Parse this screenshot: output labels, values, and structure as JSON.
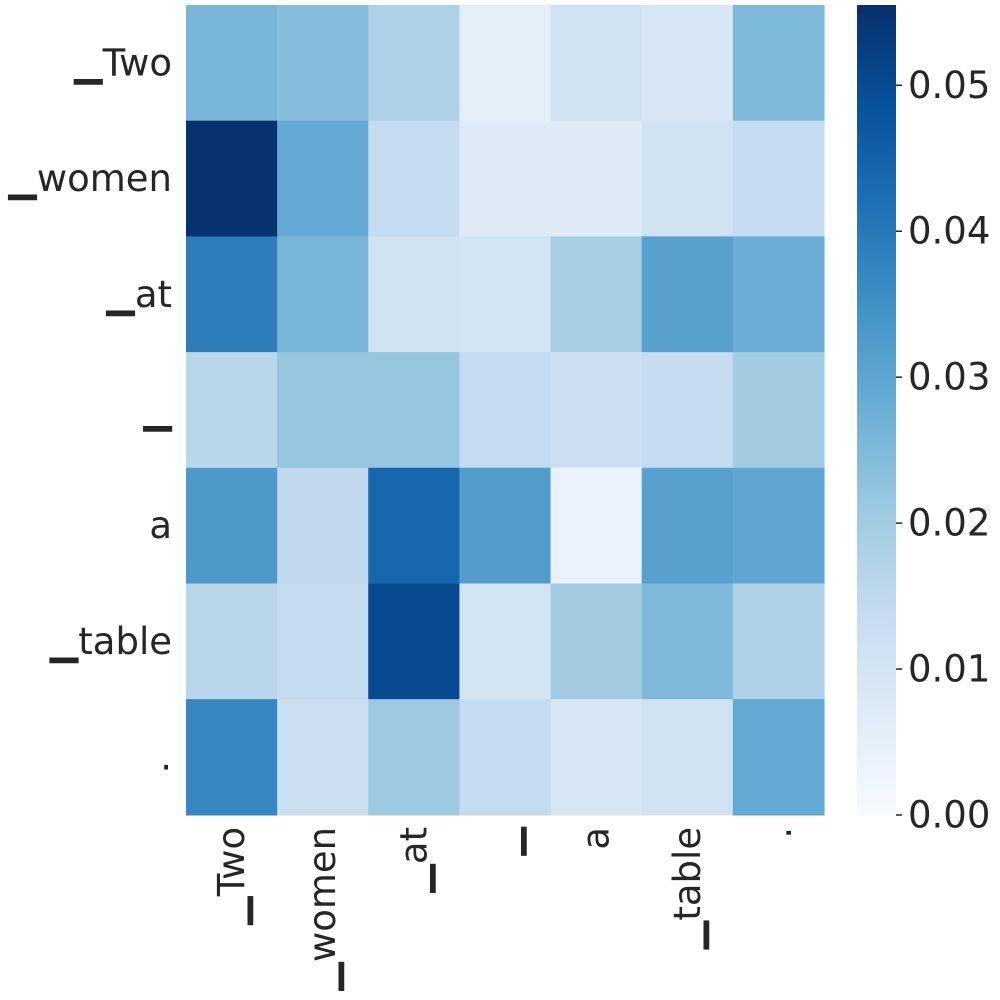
{
  "chart_data": {
    "type": "heatmap",
    "title": "",
    "xlabel": "",
    "ylabel": "",
    "x_labels": [
      "▁Two",
      "▁women",
      "▁at",
      "▁",
      "a",
      "▁table",
      "."
    ],
    "y_labels": [
      "▁Two",
      "▁women",
      "▁at",
      "▁",
      "a",
      "▁table",
      "."
    ],
    "values": [
      [
        0.026,
        0.024,
        0.018,
        0.005,
        0.011,
        0.009,
        0.025
      ],
      [
        0.055,
        0.029,
        0.014,
        0.007,
        0.007,
        0.011,
        0.014
      ],
      [
        0.039,
        0.026,
        0.011,
        0.01,
        0.019,
        0.031,
        0.028
      ],
      [
        0.016,
        0.022,
        0.022,
        0.014,
        0.012,
        0.014,
        0.02
      ],
      [
        0.033,
        0.015,
        0.044,
        0.032,
        0.004,
        0.031,
        0.03
      ],
      [
        0.016,
        0.014,
        0.05,
        0.01,
        0.02,
        0.025,
        0.018
      ],
      [
        0.037,
        0.012,
        0.021,
        0.014,
        0.009,
        0.011,
        0.029
      ]
    ],
    "colormap": "Blues",
    "colorbar": {
      "min": 0.0,
      "max": 0.0555,
      "ticks": [
        0.0,
        0.01,
        0.02,
        0.03,
        0.04,
        0.05
      ],
      "tick_labels": [
        "0.00",
        "0.01",
        "0.02",
        "0.03",
        "0.04",
        "0.05"
      ]
    }
  }
}
